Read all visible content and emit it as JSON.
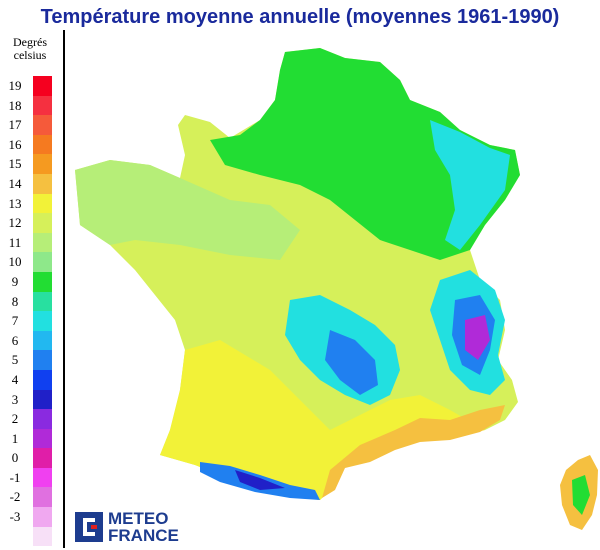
{
  "title": "Température moyenne annuelle (moyennes 1961-1990)",
  "legend": {
    "title": "Degrés celsius",
    "items": [
      {
        "label": "19",
        "color": "#f5001f"
      },
      {
        "label": "18",
        "color": "#f53040"
      },
      {
        "label": "17",
        "color": "#f55a3a"
      },
      {
        "label": "16",
        "color": "#f57a20"
      },
      {
        "label": "15",
        "color": "#f59a20"
      },
      {
        "label": "14",
        "color": "#f5c040"
      },
      {
        "label": "13",
        "color": "#f2f238"
      },
      {
        "label": "12",
        "color": "#d6f05a"
      },
      {
        "label": "11",
        "color": "#b6ee78"
      },
      {
        "label": "10",
        "color": "#8ee88a"
      },
      {
        "label": "9",
        "color": "#22dd33"
      },
      {
        "label": "8",
        "color": "#28e0a0"
      },
      {
        "label": "7",
        "color": "#22e0e0"
      },
      {
        "label": "6",
        "color": "#22b8f0"
      },
      {
        "label": "5",
        "color": "#2080f0"
      },
      {
        "label": "4",
        "color": "#1040f0"
      },
      {
        "label": "3",
        "color": "#2020c8"
      },
      {
        "label": "2",
        "color": "#8a2ae0"
      },
      {
        "label": "1",
        "color": "#b02ad8"
      },
      {
        "label": "0",
        "color": "#e01ea8"
      },
      {
        "label": "-1",
        "color": "#f040f0"
      },
      {
        "label": "-2",
        "color": "#e070e0"
      },
      {
        "label": "-3",
        "color": "#f0a8f0"
      },
      {
        "label": "",
        "color": "#f7e0f7"
      }
    ]
  },
  "logo": {
    "line1": "METEO",
    "line2": "FRANCE",
    "color": "#1d3c8f"
  },
  "map": {
    "colors": {
      "warm_south": "#f5c040",
      "yellow": "#f2f238",
      "yellow_green": "#d6f05a",
      "light_green": "#b6ee78",
      "green": "#22dd33",
      "cyan": "#22e0e0",
      "blue": "#2080f0",
      "dark_blue": "#2020c8",
      "purple": "#b02ad8"
    }
  }
}
